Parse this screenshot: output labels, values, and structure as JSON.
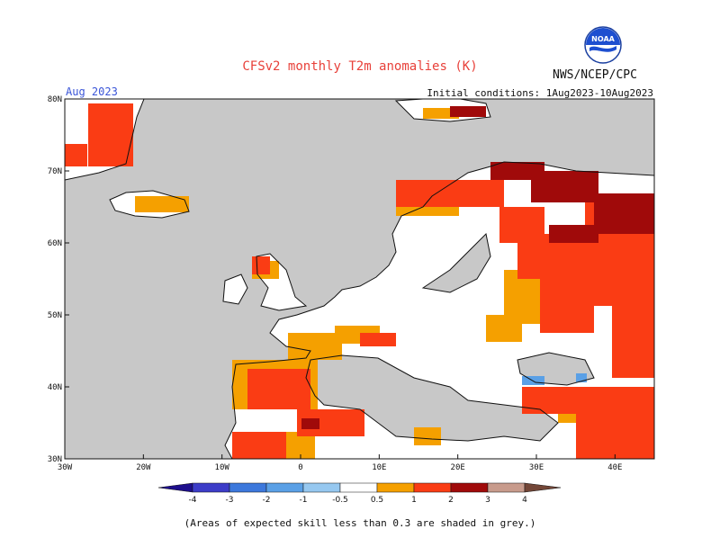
{
  "header": {
    "title": "CFSv2 monthly T2m anomalies (K)",
    "agency": "NWS/NCEP/CPC",
    "valid_month": "Aug 2023",
    "initial_conditions": "Initial conditions: 1Aug2023-10Aug2023"
  },
  "logo": {
    "text": "NOAA",
    "icon": "noaa-logo-icon"
  },
  "map": {
    "lon_range": [
      -30,
      45
    ],
    "lat_range": [
      30,
      80
    ],
    "lon_ticks": [
      "30W",
      "20W",
      "10W",
      "0",
      "10E",
      "20E",
      "30E",
      "40E"
    ],
    "lat_ticks": [
      "30N",
      "40N",
      "50N",
      "60N",
      "70N",
      "80N"
    ],
    "background_color": "#c8c8c8"
  },
  "colorbar": {
    "levels": [
      "-4",
      "-3",
      "-2",
      "-1",
      "-0.5",
      "0.5",
      "1",
      "2",
      "3",
      "4"
    ],
    "colors": [
      "#1e0f8c",
      "#3c3cc8",
      "#3c78dc",
      "#5aa0e6",
      "#96c8f0",
      "#ffffff",
      "#f5a000",
      "#fa3c14",
      "#a00a0a",
      "#c89b8c",
      "#734637"
    ]
  },
  "footnote": "(Areas of expected skill less than 0.3 are shaded in grey.)"
}
